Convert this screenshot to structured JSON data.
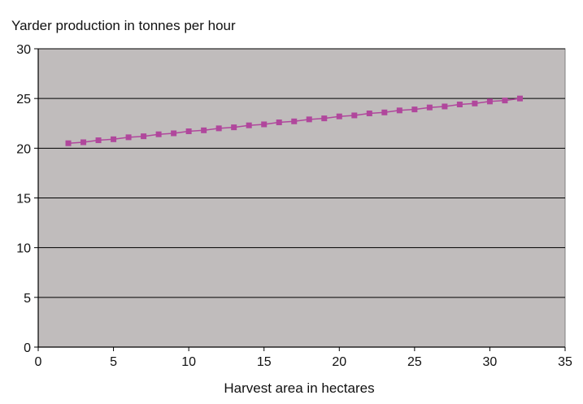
{
  "chart_data": {
    "type": "line",
    "ylabel": "Yarder production in tonnes per hour",
    "xlabel": "Harvest area in hectares",
    "xlim": [
      0,
      35
    ],
    "ylim": [
      0,
      30
    ],
    "xticks": [
      0,
      5,
      10,
      15,
      20,
      25,
      30,
      35
    ],
    "yticks": [
      0,
      5,
      10,
      15,
      20,
      25,
      30
    ],
    "grid": "horizontal",
    "legend": "none",
    "series": [
      {
        "x": [
          2,
          3,
          4,
          5,
          6,
          7,
          8,
          9,
          10,
          11,
          12,
          13,
          14,
          15,
          16,
          17,
          18,
          19,
          20,
          21,
          22,
          23,
          24,
          25,
          26,
          27,
          28,
          29,
          30,
          31,
          32
        ],
        "values": [
          20.5,
          20.6,
          20.8,
          20.9,
          21.1,
          21.2,
          21.4,
          21.5,
          21.7,
          21.8,
          22.0,
          22.1,
          22.3,
          22.4,
          22.6,
          22.7,
          22.9,
          23.0,
          23.2,
          23.3,
          23.5,
          23.6,
          23.8,
          23.9,
          24.1,
          24.2,
          24.4,
          24.5,
          24.7,
          24.8,
          25.0
        ]
      }
    ],
    "colors": {
      "plot_background": "#c0bcbc",
      "gridline": "#000000",
      "series": "#b0479c",
      "text": "#111111"
    }
  }
}
